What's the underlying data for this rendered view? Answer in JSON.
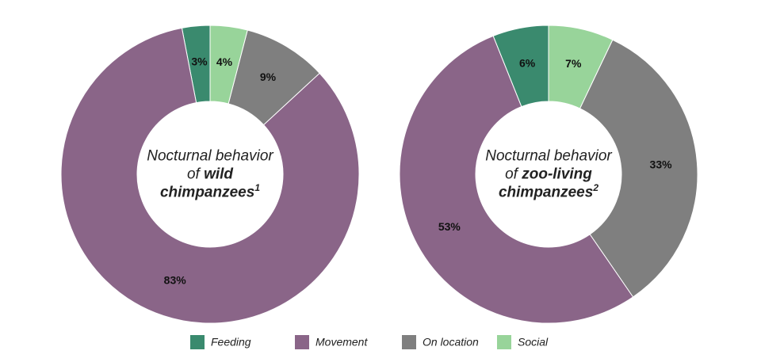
{
  "chart_data": [
    {
      "type": "pie",
      "values": [
        3,
        83,
        9,
        4
      ],
      "value_labels": [
        "3%",
        "83%",
        "9%",
        "4%"
      ],
      "center_label": {
        "text": "Nocturnal behavior of",
        "emphasis": [
          "wild",
          "chimpanzees"
        ],
        "note": "1"
      }
    },
    {
      "type": "pie",
      "values": [
        6,
        53,
        33,
        7
      ],
      "value_labels": [
        "6%",
        "53%",
        "33%",
        "7%"
      ],
      "center_label": {
        "text": "Nocturnal behavior of",
        "emphasis": [
          "zoo-living",
          "chimpanzees"
        ],
        "note": "2"
      }
    }
  ],
  "legend": [
    {
      "name": "Feeding",
      "color": "#3a8a6e"
    },
    {
      "name": "Movement",
      "color": "#8a6588"
    },
    {
      "name": "On location",
      "color": "#7f7f7f"
    },
    {
      "name": "Social",
      "color": "#98d49a"
    }
  ]
}
